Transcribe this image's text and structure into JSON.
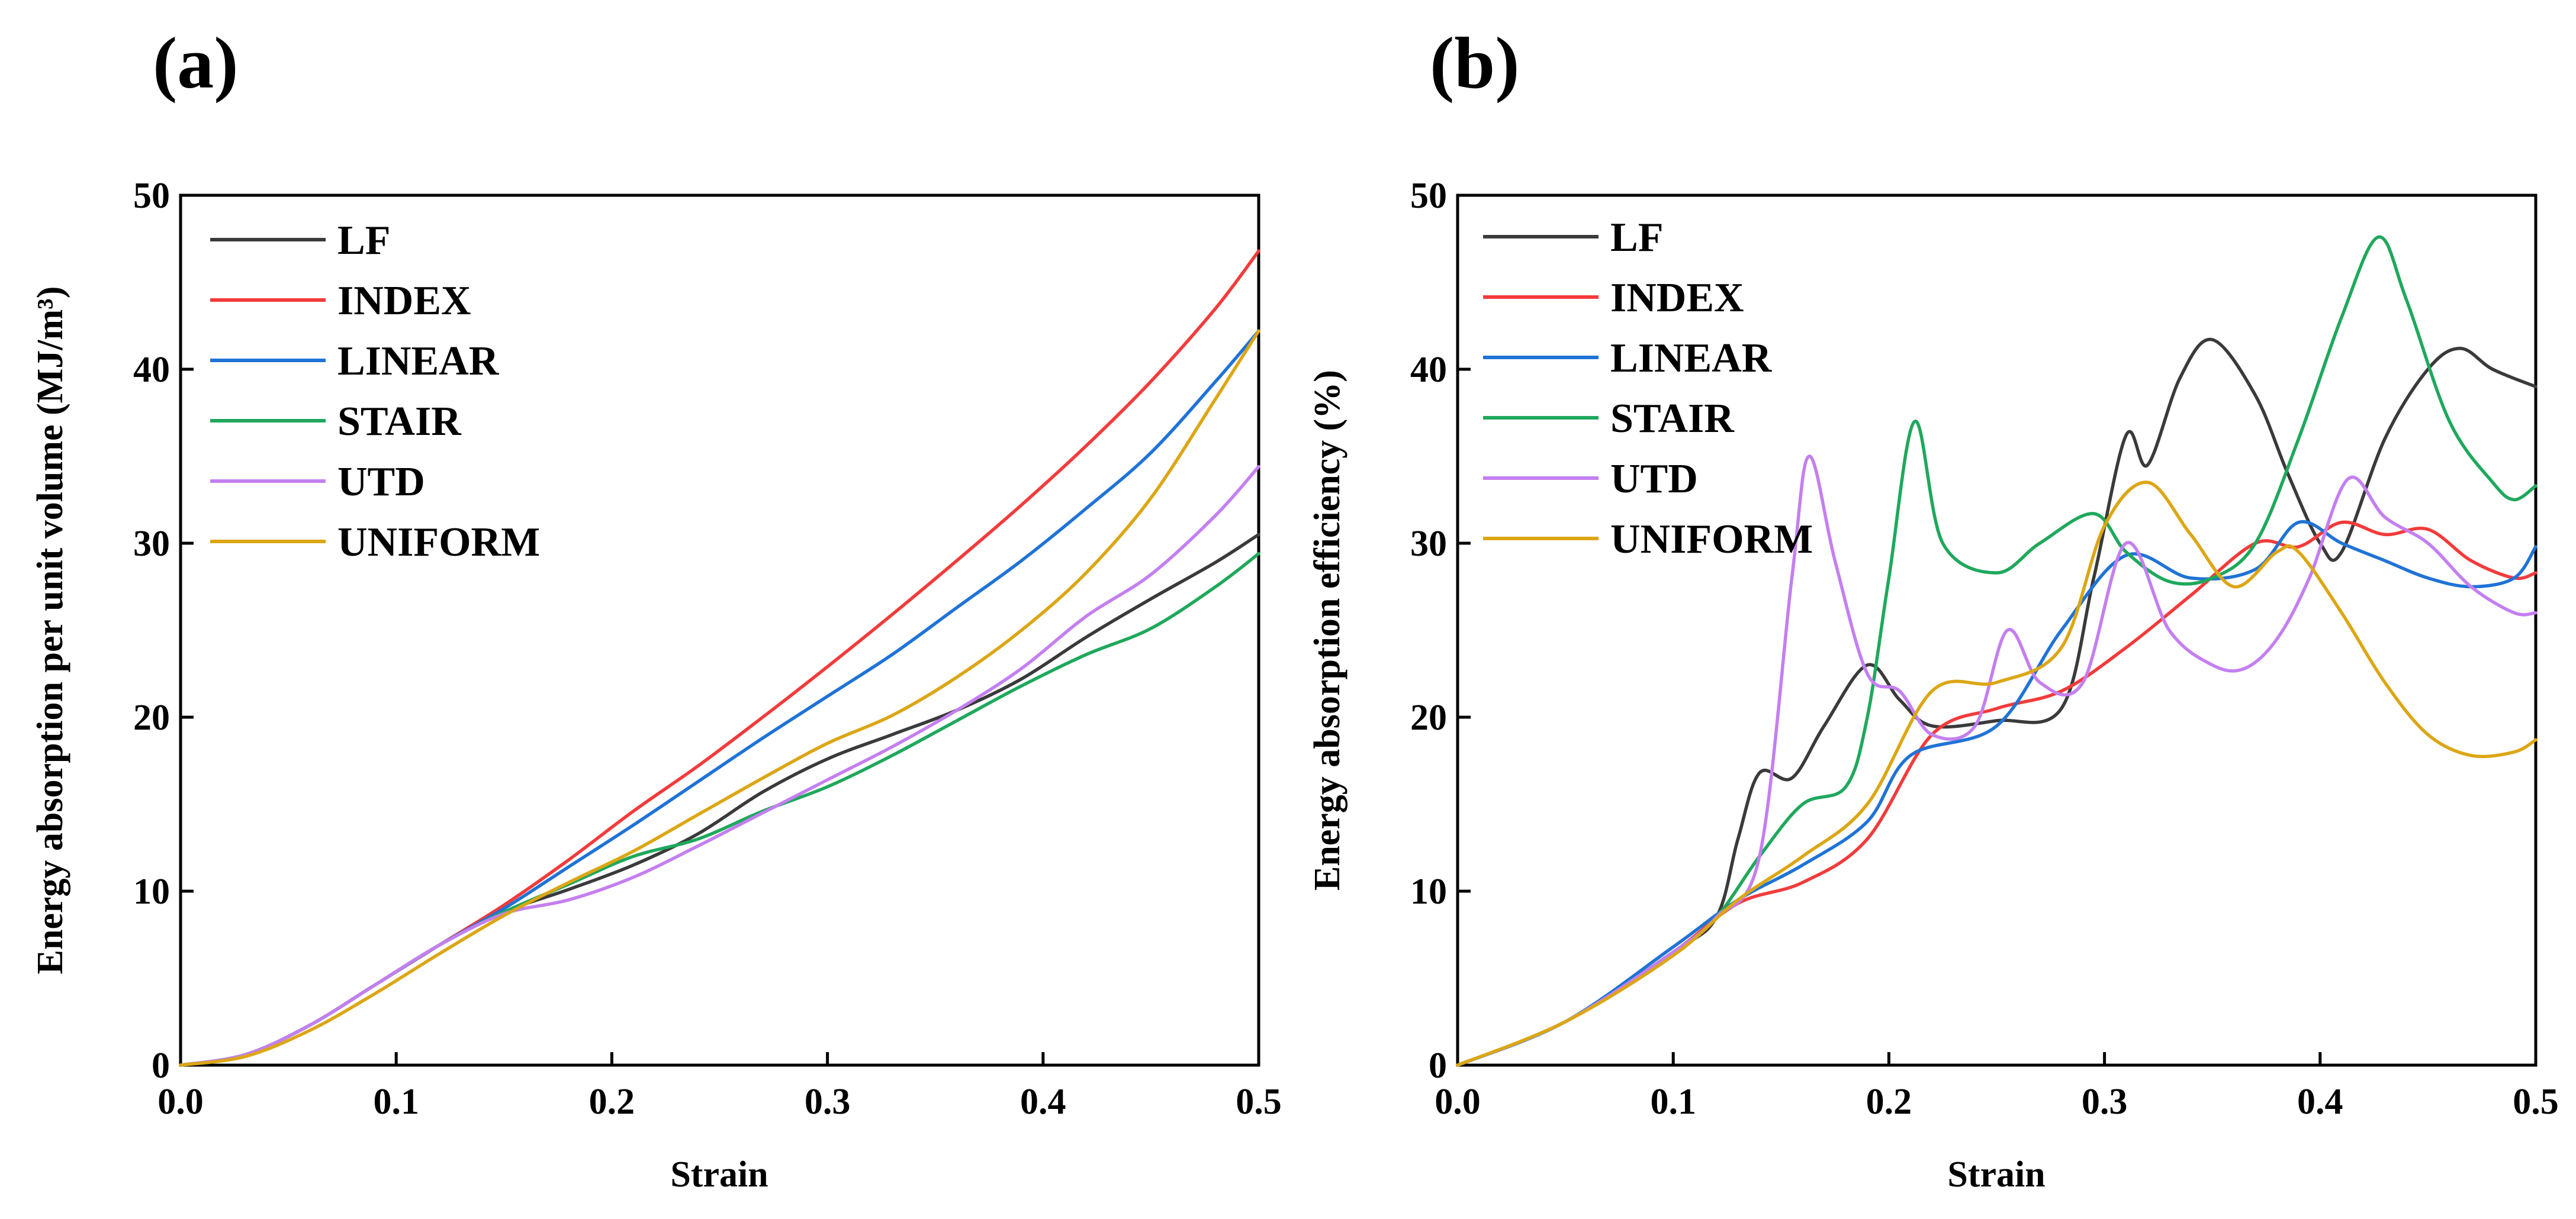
{
  "chart_data": [
    {
      "panel": "(a)",
      "type": "line",
      "title": "",
      "xlabel": "Strain",
      "ylabel": "Energy absorption per unit volume (MJ/m³)",
      "xlim": [
        0,
        0.5
      ],
      "ylim": [
        0,
        50
      ],
      "xticks": [
        "0.0",
        "0.1",
        "0.2",
        "0.3",
        "0.4",
        "0.5"
      ],
      "yticks": [
        "0",
        "10",
        "20",
        "30",
        "40",
        "50"
      ],
      "legend_position": "top-left",
      "series": [
        {
          "name": "LF",
          "color": "#3a3a3a",
          "x": [
            0,
            0.03,
            0.06,
            0.09,
            0.12,
            0.15,
            0.18,
            0.21,
            0.24,
            0.27,
            0.3,
            0.33,
            0.36,
            0.39,
            0.42,
            0.45,
            0.48,
            0.5
          ],
          "y": [
            0,
            0.6,
            2.3,
            4.6,
            6.9,
            8.8,
            10.1,
            11.5,
            13.3,
            15.7,
            17.6,
            19.0,
            20.4,
            22.2,
            24.6,
            26.8,
            28.9,
            30.5
          ]
        },
        {
          "name": "INDEX",
          "color": "#f23b3b",
          "x": [
            0,
            0.03,
            0.06,
            0.09,
            0.12,
            0.15,
            0.18,
            0.21,
            0.24,
            0.27,
            0.3,
            0.33,
            0.36,
            0.39,
            0.42,
            0.45,
            0.48,
            0.5
          ],
          "y": [
            0,
            0.6,
            2.3,
            4.6,
            6.9,
            9.2,
            11.8,
            14.6,
            17.2,
            20.0,
            22.9,
            25.9,
            29.0,
            32.2,
            35.6,
            39.3,
            43.5,
            46.8
          ]
        },
        {
          "name": "LINEAR",
          "color": "#1f73d6",
          "x": [
            0,
            0.03,
            0.06,
            0.09,
            0.12,
            0.15,
            0.18,
            0.21,
            0.24,
            0.27,
            0.3,
            0.33,
            0.36,
            0.39,
            0.42,
            0.45,
            0.48,
            0.5
          ],
          "y": [
            0,
            0.6,
            2.3,
            4.6,
            6.9,
            9.0,
            11.4,
            13.8,
            16.3,
            18.8,
            21.2,
            23.6,
            26.3,
            29.0,
            32.0,
            35.2,
            39.3,
            42.2
          ]
        },
        {
          "name": "STAIR",
          "color": "#1fa85c",
          "x": [
            0,
            0.03,
            0.06,
            0.09,
            0.12,
            0.15,
            0.18,
            0.21,
            0.24,
            0.27,
            0.3,
            0.33,
            0.36,
            0.39,
            0.42,
            0.45,
            0.48,
            0.5
          ],
          "y": [
            0,
            0.6,
            2.3,
            4.6,
            6.9,
            8.8,
            10.4,
            12.0,
            13.0,
            14.6,
            16.0,
            17.8,
            19.8,
            21.8,
            23.6,
            25.1,
            27.5,
            29.4
          ]
        },
        {
          "name": "UTD",
          "color": "#c47ff0",
          "x": [
            0,
            0.03,
            0.06,
            0.09,
            0.12,
            0.15,
            0.18,
            0.21,
            0.24,
            0.27,
            0.3,
            0.33,
            0.36,
            0.39,
            0.42,
            0.45,
            0.48,
            0.5
          ],
          "y": [
            0,
            0.6,
            2.3,
            4.6,
            6.9,
            8.7,
            9.5,
            10.8,
            12.6,
            14.5,
            16.4,
            18.3,
            20.4,
            22.8,
            25.8,
            28.2,
            31.6,
            34.4
          ]
        },
        {
          "name": "UNIFORM",
          "color": "#dca614",
          "x": [
            0,
            0.03,
            0.06,
            0.09,
            0.12,
            0.15,
            0.18,
            0.21,
            0.24,
            0.27,
            0.3,
            0.33,
            0.36,
            0.39,
            0.42,
            0.45,
            0.48,
            0.5
          ],
          "y": [
            0,
            0.5,
            2.0,
            4.1,
            6.4,
            8.6,
            10.5,
            12.3,
            14.4,
            16.5,
            18.5,
            20.1,
            22.3,
            25.0,
            28.3,
            32.6,
            38.3,
            42.2
          ]
        }
      ]
    },
    {
      "panel": "(b)",
      "type": "line",
      "title": "",
      "xlabel": "Strain",
      "ylabel": "Energy absorption efficiency (%)",
      "xlim": [
        0,
        0.5
      ],
      "ylim": [
        0,
        50
      ],
      "xticks": [
        "0.0",
        "0.1",
        "0.2",
        "0.3",
        "0.4",
        "0.5"
      ],
      "yticks": [
        "0",
        "10",
        "20",
        "30",
        "40",
        "50"
      ],
      "legend_position": "top-left",
      "series": [
        {
          "name": "LF",
          "color": "#3a3a3a",
          "x": [
            0,
            0.05,
            0.1,
            0.12,
            0.13,
            0.14,
            0.155,
            0.17,
            0.19,
            0.205,
            0.22,
            0.25,
            0.28,
            0.295,
            0.31,
            0.32,
            0.335,
            0.35,
            0.37,
            0.385,
            0.4,
            0.41,
            0.43,
            0.45,
            0.465,
            0.48,
            0.5
          ],
          "y": [
            0,
            2.5,
            6.5,
            8.5,
            13.0,
            16.8,
            16.5,
            19.5,
            23.0,
            21.0,
            19.5,
            19.8,
            20.5,
            28.0,
            36.2,
            34.5,
            39.5,
            41.7,
            38.5,
            34.0,
            30.0,
            29.5,
            36.0,
            40.0,
            41.2,
            40.0,
            39.0
          ]
        },
        {
          "name": "INDEX",
          "color": "#f23b3b",
          "x": [
            0,
            0.05,
            0.1,
            0.13,
            0.16,
            0.19,
            0.22,
            0.25,
            0.28,
            0.31,
            0.34,
            0.37,
            0.39,
            0.41,
            0.43,
            0.45,
            0.47,
            0.49,
            0.5
          ],
          "y": [
            0,
            2.5,
            6.5,
            9.3,
            10.5,
            13.0,
            19.0,
            20.5,
            21.5,
            24.0,
            27.0,
            30.0,
            29.8,
            31.2,
            30.5,
            30.8,
            29.0,
            28.0,
            28.3
          ]
        },
        {
          "name": "LINEAR",
          "color": "#1f73d6",
          "x": [
            0,
            0.05,
            0.1,
            0.13,
            0.16,
            0.19,
            0.21,
            0.25,
            0.28,
            0.31,
            0.34,
            0.37,
            0.39,
            0.41,
            0.43,
            0.45,
            0.47,
            0.49,
            0.5
          ],
          "y": [
            0,
            2.5,
            6.8,
            9.5,
            11.5,
            14.0,
            17.8,
            19.5,
            25.0,
            29.3,
            28.0,
            28.5,
            31.2,
            30.0,
            29.0,
            28.0,
            27.5,
            28.0,
            29.8
          ]
        },
        {
          "name": "STAIR",
          "color": "#1fa85c",
          "x": [
            0,
            0.05,
            0.1,
            0.12,
            0.14,
            0.16,
            0.18,
            0.19,
            0.2,
            0.212,
            0.225,
            0.25,
            0.27,
            0.295,
            0.31,
            0.33,
            0.35,
            0.37,
            0.39,
            0.41,
            0.427,
            0.44,
            0.46,
            0.48,
            0.49,
            0.5
          ],
          "y": [
            0,
            2.5,
            6.5,
            8.5,
            12.0,
            15.0,
            16.0,
            20.0,
            28.0,
            37.0,
            30.0,
            28.3,
            30.0,
            31.7,
            29.5,
            27.8,
            28.0,
            30.0,
            36.0,
            43.0,
            47.6,
            44.0,
            37.0,
            33.5,
            32.5,
            33.3
          ]
        },
        {
          "name": "UTD",
          "color": "#c47ff0",
          "x": [
            0,
            0.05,
            0.1,
            0.12,
            0.14,
            0.155,
            0.163,
            0.175,
            0.19,
            0.205,
            0.22,
            0.24,
            0.255,
            0.27,
            0.29,
            0.31,
            0.33,
            0.35,
            0.365,
            0.38,
            0.395,
            0.413,
            0.43,
            0.45,
            0.47,
            0.49,
            0.5
          ],
          "y": [
            0,
            2.5,
            6.5,
            8.5,
            12.0,
            28.0,
            35.0,
            29.0,
            22.5,
            21.5,
            19.0,
            19.5,
            25.0,
            22.0,
            22.0,
            30.0,
            25.0,
            23.0,
            22.8,
            24.5,
            28.0,
            33.7,
            31.5,
            30.0,
            27.5,
            26.0,
            26.0
          ]
        },
        {
          "name": "UNIFORM",
          "color": "#dca614",
          "x": [
            0,
            0.05,
            0.1,
            0.13,
            0.16,
            0.19,
            0.22,
            0.25,
            0.28,
            0.3,
            0.32,
            0.34,
            0.36,
            0.38,
            0.39,
            0.41,
            0.43,
            0.45,
            0.47,
            0.49,
            0.5
          ],
          "y": [
            0,
            2.5,
            6.3,
            9.5,
            12.0,
            15.0,
            21.5,
            22.0,
            24.0,
            31.0,
            33.5,
            30.5,
            27.5,
            29.5,
            29.5,
            26.0,
            22.0,
            19.0,
            17.8,
            18.0,
            18.7
          ]
        }
      ]
    }
  ]
}
